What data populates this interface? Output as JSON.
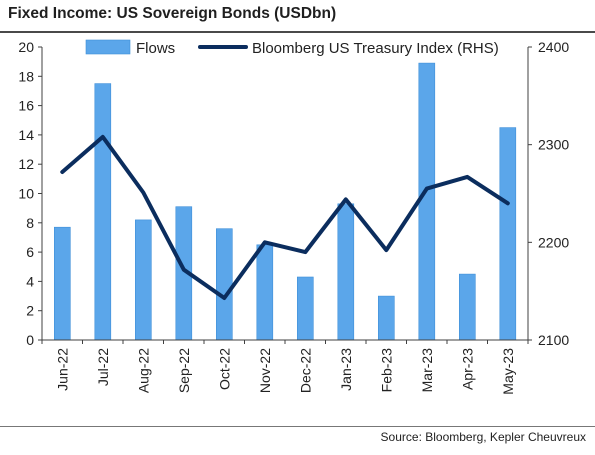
{
  "chart_data": {
    "type": "bar",
    "title": "Fixed Income: US Sovereign Bonds (USDbn)",
    "source": "Source: Bloomberg, Kepler Cheuvreux",
    "categories": [
      "Jun-22",
      "Jul-22",
      "Aug-22",
      "Sep-22",
      "Oct-22",
      "Nov-22",
      "Dec-22",
      "Jan-23",
      "Feb-23",
      "Mar-23",
      "Apr-23",
      "May-23"
    ],
    "series": [
      {
        "name": "Flows",
        "type": "bar",
        "axis": "left",
        "color": "#5ba6ea",
        "values": [
          7.7,
          17.5,
          8.2,
          9.1,
          7.6,
          6.5,
          4.3,
          9.3,
          3.0,
          18.9,
          4.5,
          14.5
        ]
      },
      {
        "name": "Bloomberg US Treasury Index (RHS)",
        "type": "line",
        "axis": "right",
        "color": "#0b2d5e",
        "values": [
          2272,
          2308,
          2251,
          2172,
          2143,
          2200,
          2190,
          2244,
          2192,
          2255,
          2267,
          2240
        ]
      }
    ],
    "ylim_left": [
      0,
      20
    ],
    "yticks_left": [
      "0",
      "2",
      "4",
      "6",
      "8",
      "10",
      "12",
      "14",
      "16",
      "18",
      "20"
    ],
    "ylim_right": [
      2100,
      2400
    ],
    "yticks_right": [
      "2100",
      "2200",
      "2300",
      "2400"
    ],
    "grid": false,
    "legend_position": "top"
  }
}
